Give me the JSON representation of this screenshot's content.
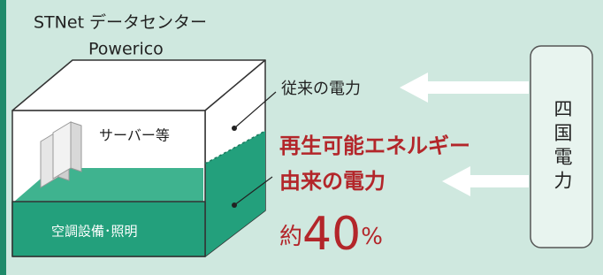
{
  "header": {
    "title": "STNet データセンター",
    "subtitle": "Powerico"
  },
  "building": {
    "server_label": "サーバー等",
    "facility_label": "空調設備･照明"
  },
  "flows": [
    {
      "label": "従来の電力"
    },
    {
      "label_lines": [
        "再生可能エネルギー",
        "由来の電力"
      ],
      "share": {
        "prefix": "約",
        "number": "40",
        "unit": "%"
      }
    }
  ],
  "source": {
    "label": "四国電力"
  }
}
